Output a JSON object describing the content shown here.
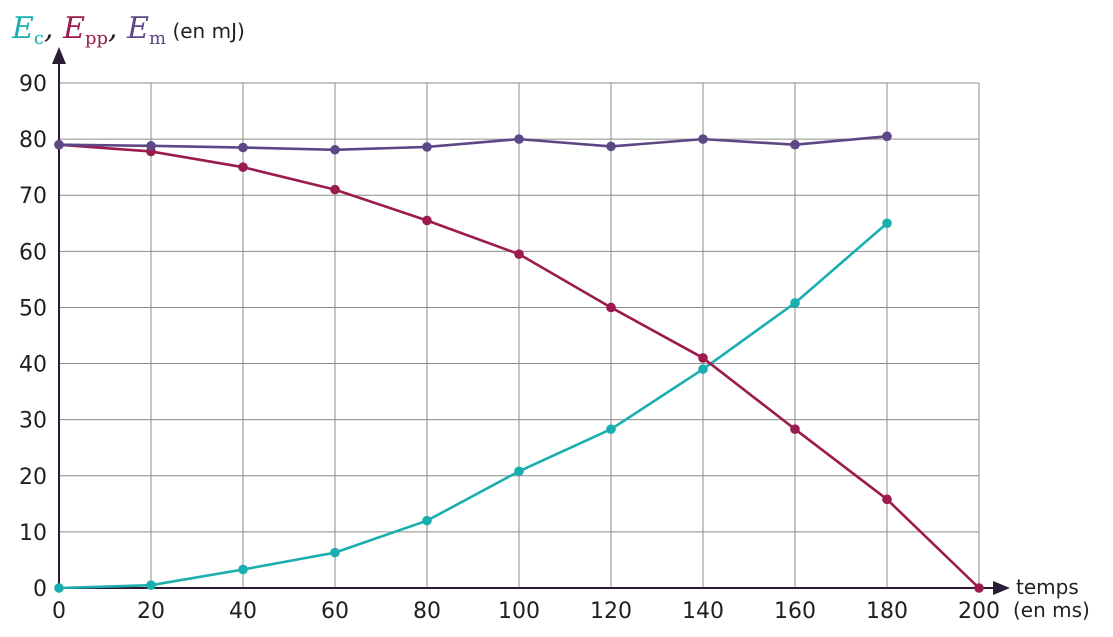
{
  "chart_data": {
    "type": "line",
    "x": [
      0,
      20,
      40,
      60,
      80,
      100,
      120,
      140,
      160,
      180,
      200
    ],
    "x_ticks": [
      "0",
      "20",
      "40",
      "60",
      "80",
      "100",
      "120",
      "140",
      "160",
      "180",
      "200"
    ],
    "y_ticks": [
      "0",
      "10",
      "20",
      "30",
      "40",
      "50",
      "60",
      "70",
      "80",
      "90"
    ],
    "xlim": [
      0,
      200
    ],
    "ylim": [
      0,
      90
    ],
    "grid": true,
    "xlabel": "temps",
    "xlabel_unit": "(en ms)",
    "ylabel": {
      "ec_symbol": "E",
      "ec_sub": "c",
      "epp_symbol": "E",
      "epp_sub": "pp",
      "em_symbol": "E",
      "em_sub": "m",
      "unit": "(en mJ)"
    },
    "series": [
      {
        "key": "Ec",
        "color": "#1aaeb0",
        "x": [
          0,
          20,
          40,
          60,
          80,
          100,
          120,
          140,
          160,
          180
        ],
        "values": [
          0,
          0.5,
          3.3,
          6.3,
          12,
          20.8,
          28.3,
          39,
          50.8,
          65
        ]
      },
      {
        "key": "Epp",
        "color": "#9b1b4e",
        "x": [
          0,
          20,
          40,
          60,
          80,
          100,
          120,
          140,
          160,
          180,
          200
        ],
        "values": [
          79,
          77.8,
          75,
          71,
          65.5,
          59.5,
          50,
          41,
          28.3,
          15.8,
          0
        ]
      },
      {
        "key": "Em",
        "color": "#5d4886",
        "x": [
          0,
          20,
          40,
          60,
          80,
          100,
          120,
          140,
          160,
          180
        ],
        "values": [
          79,
          78.8,
          78.5,
          78.1,
          78.6,
          80,
          78.7,
          80,
          79,
          80.5
        ]
      }
    ]
  }
}
